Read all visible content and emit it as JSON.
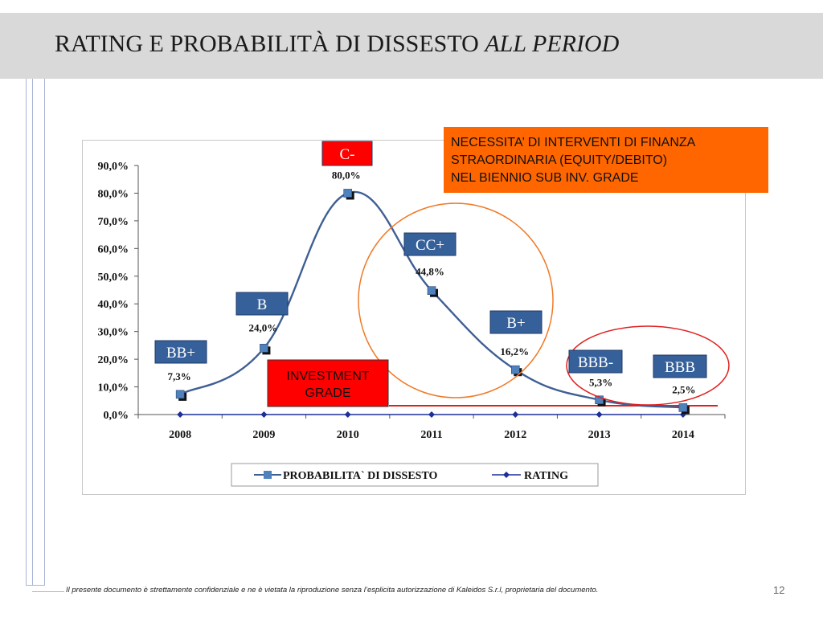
{
  "slide": {
    "title_main": "RATING E PROBABILITÀ DI DISSESTO ",
    "title_italic": "ALL PERIOD",
    "footer_note": "Il presente documento è strettamente confidenziale e ne è vietata la riproduzione senza l’esplicita autorizzazione di Kaleidos S.r.l, proprietaria del documento.",
    "page_number": "12"
  },
  "colors": {
    "series_line": "#3f5f94",
    "series_marker": "#4f81bd",
    "rating_line": "#1c2f9a",
    "rating_box": "#36609a",
    "red_box": "#ff0000",
    "orange_box": "#ff6600",
    "threshold_line": "#e02020",
    "orange_circle": "#f07a28",
    "red_ellipse": "#e02020"
  },
  "chart_data": {
    "type": "line",
    "categories": [
      "2008",
      "2009",
      "2010",
      "2011",
      "2012",
      "2013",
      "2014"
    ],
    "y_ticks": [
      "0,0%",
      "10,0%",
      "20,0%",
      "30,0%",
      "40,0%",
      "50,0%",
      "60,0%",
      "70,0%",
      "80,0%",
      "90,0%"
    ],
    "ylim": [
      0,
      90
    ],
    "series": [
      {
        "name": "PROBABILITA` DI DISSESTO",
        "values": [
          7.3,
          24.0,
          80.0,
          44.8,
          16.2,
          5.3,
          2.5
        ],
        "labels": [
          "7,3%",
          "24,0%",
          "80,0%",
          "44,8%",
          "16,2%",
          "5,3%",
          "2,5%"
        ]
      },
      {
        "name": "RATING",
        "values": [
          0,
          0,
          0,
          0,
          0,
          0,
          0
        ]
      }
    ],
    "ratings": [
      "BB+",
      "B",
      "C-",
      "CC+",
      "B+",
      "BBB-",
      "BBB"
    ],
    "legend_position": "bottom",
    "grid": false,
    "annotations": {
      "investment_grade": [
        "INVESTMENT",
        "GRADE"
      ],
      "callout": [
        "NECESSITA’ DI INTERVENTI DI FINANZA",
        "STRAORDINARIA (EQUITY/DEBITO)",
        "NEL BIENNIO SUB INV. GRADE"
      ]
    }
  }
}
